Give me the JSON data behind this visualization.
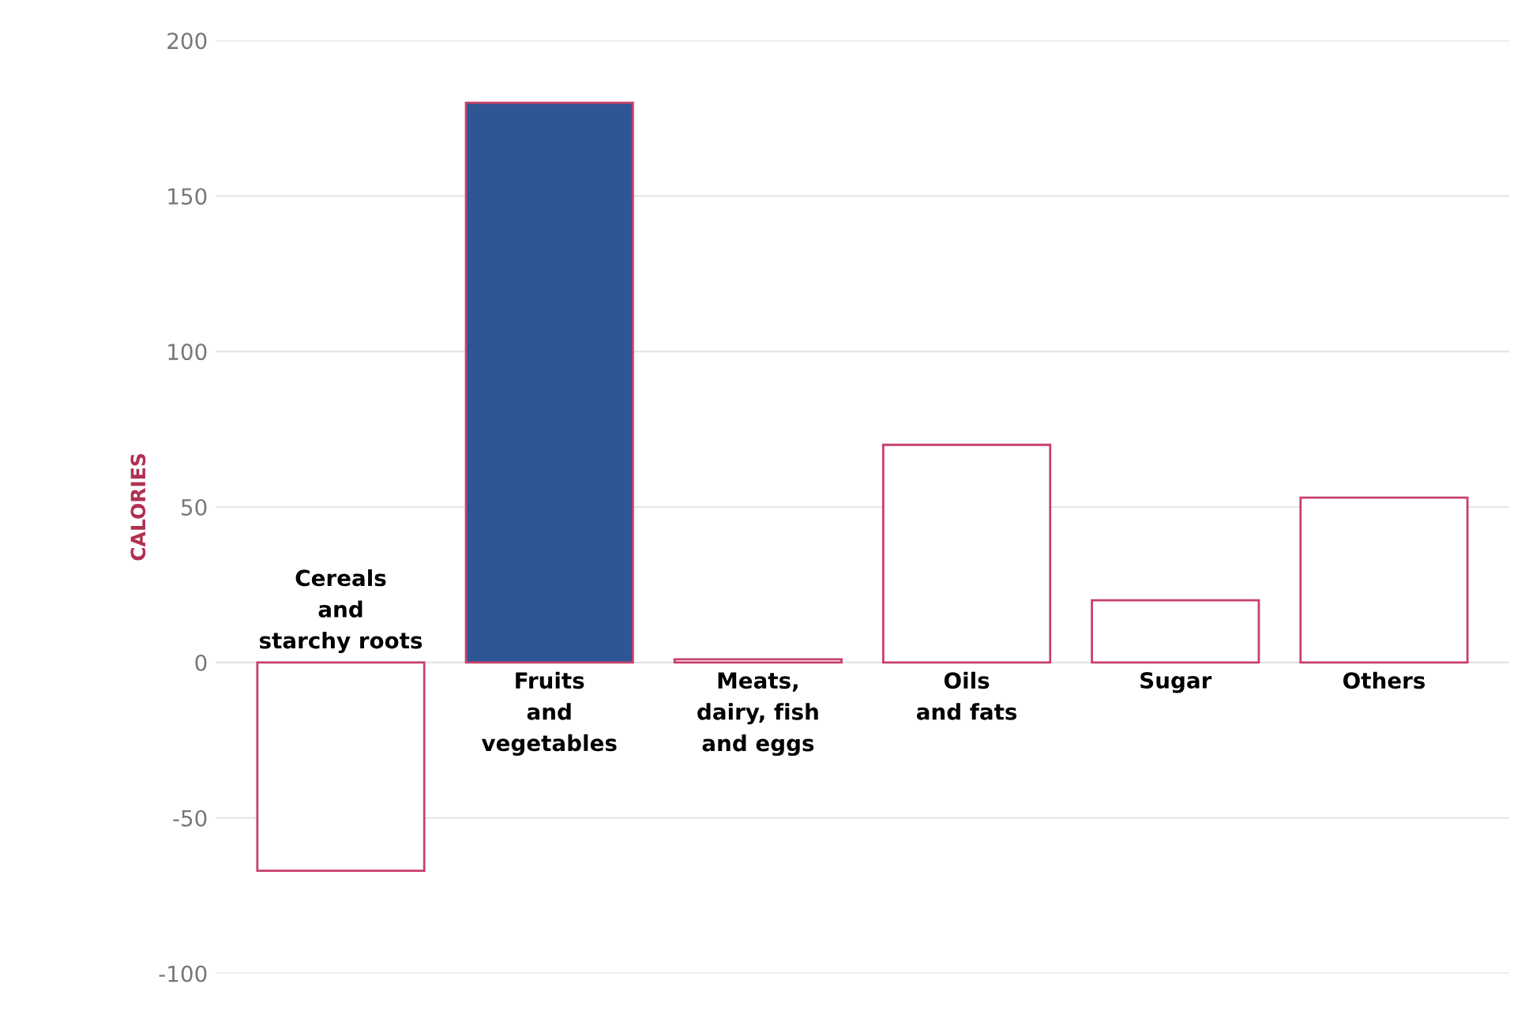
{
  "chart_data": {
    "type": "bar",
    "ylabel": "CALORIES",
    "categories": [
      "Cereals\nand\nstarchy roots",
      "Fruits\nand\nvegetables",
      "Meats,\ndairy, fish\nand eggs",
      "Oils\nand fats",
      "Sugar",
      "Others"
    ],
    "values": [
      -67,
      180,
      1,
      70,
      20,
      53
    ],
    "colors": [
      "#ffffff",
      "#2e5594",
      "#ffffff",
      "#ffffff",
      "#ffffff",
      "#ffffff"
    ],
    "ylim": [
      -100,
      200
    ],
    "yticks": [
      -100,
      -50,
      0,
      50,
      100,
      150,
      200
    ],
    "grid": "y"
  }
}
